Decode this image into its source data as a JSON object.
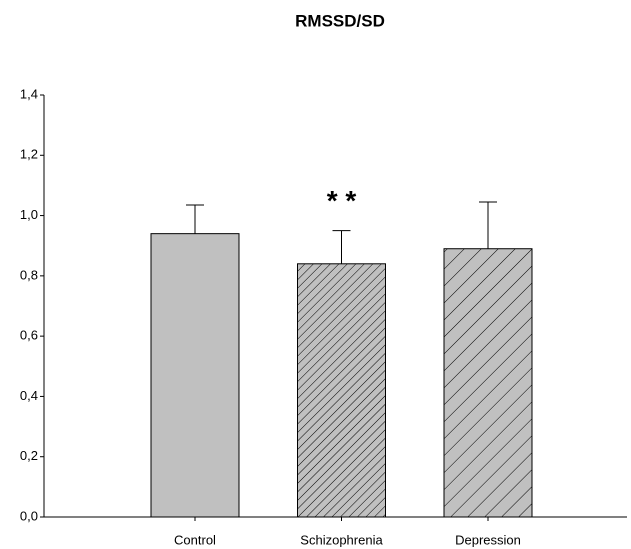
{
  "chart_data": {
    "type": "bar",
    "title": "RMSSD/SD",
    "categories": [
      "Control",
      "Schizophrenia",
      "Depression"
    ],
    "values": [
      0.94,
      0.84,
      0.89
    ],
    "errors": [
      0.095,
      0.11,
      0.155
    ],
    "colors": [
      "#c0c0c0",
      "#c0c0c0",
      "#c0c0c0"
    ],
    "hatch": [
      "none",
      "dense",
      "sparse"
    ],
    "annotations": [
      {
        "text": "* *",
        "category": 1
      }
    ],
    "ylim": [
      0,
      1.4
    ],
    "yticks": [
      {
        "value": 0,
        "label": "0,0"
      },
      {
        "value": 0.2,
        "label": "0,2"
      },
      {
        "value": 0.4,
        "label": "0,4"
      },
      {
        "value": 0.6,
        "label": "0,6"
      },
      {
        "value": 0.8,
        "label": "0,8"
      },
      {
        "value": 1.0,
        "label": "1,0"
      },
      {
        "value": 1.2,
        "label": "1,2"
      },
      {
        "value": 1.4,
        "label": "1,4"
      }
    ],
    "grid": false
  }
}
